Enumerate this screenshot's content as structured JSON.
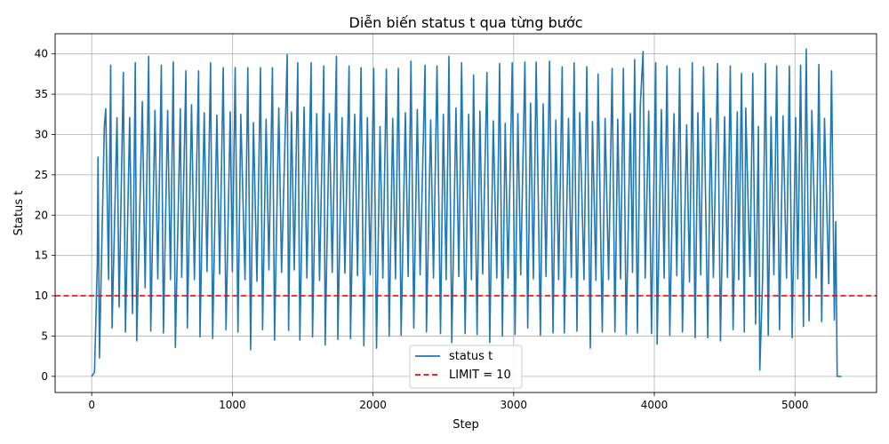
{
  "chart_data": {
    "type": "line",
    "title": "Diễn biến status t qua từng bước",
    "xlabel": "Step",
    "ylabel": "Status t",
    "xlim": [
      -260,
      5580
    ],
    "ylim": [
      -2,
      42.5
    ],
    "xticks": [
      0,
      1000,
      2000,
      3000,
      4000,
      5000
    ],
    "yticks": [
      0,
      5,
      10,
      15,
      20,
      25,
      30,
      35,
      40
    ],
    "grid": true,
    "legend_position": "bottom-center",
    "series": [
      {
        "name": "status t",
        "color": "#1f77b4",
        "style": "solid",
        "description_of_shape": "rapid oscillation between ~3-12 (troughs) and ~30-40 (peaks), roughly 110 cycles",
        "start": [
          [
            0,
            0
          ],
          [
            20,
            0.5
          ],
          [
            40,
            14
          ],
          [
            45,
            27.2
          ],
          [
            55,
            2.3
          ]
        ],
        "peaks": [
          [
            45,
            27.2
          ],
          [
            90,
            31.1
          ],
          [
            100,
            33.2
          ],
          [
            135,
            38.6
          ],
          [
            180,
            32.1
          ],
          [
            225,
            37.7
          ],
          [
            270,
            32.1
          ],
          [
            310,
            38.9
          ],
          [
            360,
            34.1
          ],
          [
            405,
            39.7
          ],
          [
            450,
            33.0
          ],
          [
            495,
            38.6
          ],
          [
            540,
            33.0
          ],
          [
            580,
            39.0
          ],
          [
            630,
            33.2
          ],
          [
            670,
            37.9
          ],
          [
            710,
            33.7
          ],
          [
            760,
            37.9
          ],
          [
            800,
            32.7
          ],
          [
            845,
            38.9
          ],
          [
            890,
            32.4
          ],
          [
            935,
            38.3
          ],
          [
            985,
            32.8
          ],
          [
            1020,
            38.3
          ],
          [
            1060,
            32.5
          ],
          [
            1110,
            38.3
          ],
          [
            1150,
            31.5
          ],
          [
            1200,
            38.3
          ],
          [
            1240,
            31.9
          ],
          [
            1285,
            38.3
          ],
          [
            1330,
            33.3
          ],
          [
            1390,
            39.9
          ],
          [
            1420,
            32.8
          ],
          [
            1465,
            38.9
          ],
          [
            1510,
            33.4
          ],
          [
            1560,
            38.9
          ],
          [
            1600,
            32.6
          ],
          [
            1650,
            38.5
          ],
          [
            1690,
            32.6
          ],
          [
            1740,
            39.7
          ],
          [
            1780,
            32.1
          ],
          [
            1830,
            38.5
          ],
          [
            1870,
            32.5
          ],
          [
            1915,
            38.3
          ],
          [
            1960,
            32.1
          ],
          [
            2005,
            38.2
          ],
          [
            2050,
            31.0
          ],
          [
            2095,
            38.1
          ],
          [
            2140,
            32.0
          ],
          [
            2180,
            38.2
          ],
          [
            2230,
            32.7
          ],
          [
            2270,
            39.1
          ],
          [
            2315,
            33.1
          ],
          [
            2370,
            38.6
          ],
          [
            2410,
            31.8
          ],
          [
            2455,
            38.5
          ],
          [
            2500,
            32.5
          ],
          [
            2540,
            39.7
          ],
          [
            2590,
            33.3
          ],
          [
            2630,
            38.9
          ],
          [
            2680,
            32.5
          ],
          [
            2715,
            37.4
          ],
          [
            2760,
            32.9
          ],
          [
            2810,
            37.7
          ],
          [
            2855,
            31.7
          ],
          [
            2900,
            38.8
          ],
          [
            2940,
            31.4
          ],
          [
            2990,
            38.9
          ],
          [
            3030,
            32.6
          ],
          [
            3080,
            39.0
          ],
          [
            3120,
            33.9
          ],
          [
            3160,
            39.0
          ],
          [
            3210,
            33.8
          ],
          [
            3255,
            39.1
          ],
          [
            3300,
            31.8
          ],
          [
            3345,
            38.4
          ],
          [
            3390,
            32.0
          ],
          [
            3430,
            38.9
          ],
          [
            3470,
            32.7
          ],
          [
            3520,
            38.4
          ],
          [
            3560,
            31.6
          ],
          [
            3600,
            37.5
          ],
          [
            3650,
            32.0
          ],
          [
            3700,
            38.2
          ],
          [
            3740,
            31.9
          ],
          [
            3780,
            38.2
          ],
          [
            3830,
            32.6
          ],
          [
            3860,
            39.3
          ],
          [
            3900,
            33.5
          ],
          [
            3920,
            40.3
          ],
          [
            3960,
            32.9
          ],
          [
            4010,
            38.9
          ],
          [
            4050,
            33.1
          ],
          [
            4090,
            38.5
          ],
          [
            4140,
            32.6
          ],
          [
            4180,
            38.2
          ],
          [
            4230,
            31.2
          ],
          [
            4270,
            38.9
          ],
          [
            4310,
            32.7
          ],
          [
            4350,
            38.4
          ],
          [
            4400,
            32.0
          ],
          [
            4450,
            38.8
          ],
          [
            4500,
            32.2
          ],
          [
            4540,
            38.5
          ],
          [
            4590,
            32.8
          ],
          [
            4620,
            37.6
          ],
          [
            4650,
            33.3
          ],
          [
            4700,
            37.6
          ],
          [
            4740,
            31.0
          ],
          [
            4790,
            38.8
          ],
          [
            4830,
            32.2
          ],
          [
            4870,
            38.5
          ],
          [
            4915,
            32.3
          ],
          [
            4960,
            38.5
          ],
          [
            5005,
            32.1
          ],
          [
            5040,
            38.6
          ],
          [
            5080,
            40.6
          ],
          [
            5120,
            33.0
          ],
          [
            5170,
            38.7
          ],
          [
            5210,
            32.0
          ],
          [
            5260,
            37.9
          ]
        ],
        "troughs": [
          [
            55,
            2.3
          ],
          [
            120,
            12.0
          ],
          [
            145,
            6.0
          ],
          [
            195,
            8.6
          ],
          [
            240,
            5.5
          ],
          [
            290,
            7.8
          ],
          [
            320,
            4.4
          ],
          [
            380,
            11.0
          ],
          [
            420,
            5.6
          ],
          [
            470,
            12.1
          ],
          [
            510,
            5.4
          ],
          [
            560,
            12.0
          ],
          [
            595,
            3.6
          ],
          [
            640,
            12.3
          ],
          [
            680,
            6.0
          ],
          [
            730,
            12.0
          ],
          [
            770,
            4.9
          ],
          [
            820,
            13.0
          ],
          [
            860,
            4.7
          ],
          [
            910,
            12.7
          ],
          [
            955,
            5.8
          ],
          [
            1000,
            13.0
          ],
          [
            1040,
            5.5
          ],
          [
            1090,
            12.0
          ],
          [
            1130,
            3.3
          ],
          [
            1175,
            11.8
          ],
          [
            1215,
            5.8
          ],
          [
            1260,
            13.2
          ],
          [
            1300,
            4.5
          ],
          [
            1350,
            12.9
          ],
          [
            1400,
            5.7
          ],
          [
            1440,
            13.2
          ],
          [
            1480,
            4.5
          ],
          [
            1530,
            12.2
          ],
          [
            1570,
            4.9
          ],
          [
            1620,
            11.9
          ],
          [
            1660,
            3.9
          ],
          [
            1710,
            12.9
          ],
          [
            1750,
            4.6
          ],
          [
            1800,
            12.8
          ],
          [
            1840,
            4.7
          ],
          [
            1890,
            12.5
          ],
          [
            1935,
            3.8
          ],
          [
            1980,
            12.6
          ],
          [
            2025,
            3.5
          ],
          [
            2070,
            12.2
          ],
          [
            2115,
            5.0
          ],
          [
            2160,
            12.1
          ],
          [
            2200,
            5.1
          ],
          [
            2250,
            12.4
          ],
          [
            2290,
            6.0
          ],
          [
            2335,
            12.6
          ],
          [
            2380,
            5.5
          ],
          [
            2430,
            12.2
          ],
          [
            2480,
            5.3
          ],
          [
            2520,
            12.0
          ],
          [
            2560,
            4.2
          ],
          [
            2610,
            12.4
          ],
          [
            2655,
            5.3
          ],
          [
            2700,
            12.0
          ],
          [
            2740,
            5.2
          ],
          [
            2780,
            12.7
          ],
          [
            2830,
            4.2
          ],
          [
            2880,
            12.2
          ],
          [
            2920,
            5.0
          ],
          [
            2960,
            12.2
          ],
          [
            3010,
            5.2
          ],
          [
            3050,
            12.6
          ],
          [
            3100,
            6.0
          ],
          [
            3140,
            12.1
          ],
          [
            3190,
            5.1
          ],
          [
            3230,
            12.4
          ],
          [
            3280,
            5.4
          ],
          [
            3320,
            12.0
          ],
          [
            3360,
            5.4
          ],
          [
            3410,
            12.3
          ],
          [
            3450,
            5.6
          ],
          [
            3500,
            12.0
          ],
          [
            3545,
            3.5
          ],
          [
            3585,
            11.9
          ],
          [
            3630,
            5.5
          ],
          [
            3675,
            12.0
          ],
          [
            3720,
            5.5
          ],
          [
            3760,
            12.1
          ],
          [
            3800,
            5.2
          ],
          [
            3845,
            12.9
          ],
          [
            3880,
            5.4
          ],
          [
            3935,
            12.2
          ],
          [
            3980,
            5.3
          ],
          [
            4020,
            4.0
          ],
          [
            4070,
            12.2
          ],
          [
            4110,
            5.1
          ],
          [
            4160,
            12.5
          ],
          [
            4200,
            5.5
          ],
          [
            4250,
            11.7
          ],
          [
            4290,
            4.8
          ],
          [
            4330,
            12.6
          ],
          [
            4380,
            4.8
          ],
          [
            4420,
            12.3
          ],
          [
            4470,
            4.4
          ],
          [
            4520,
            12.3
          ],
          [
            4560,
            5.8
          ],
          [
            4600,
            12.0
          ],
          [
            4640,
            5.5
          ],
          [
            4680,
            12.4
          ],
          [
            4720,
            6.5
          ],
          [
            4750,
            0.8
          ],
          [
            4770,
            12.1
          ],
          [
            4810,
            5.1
          ],
          [
            4850,
            12.6
          ],
          [
            4890,
            5.8
          ],
          [
            4940,
            12.2
          ],
          [
            4980,
            4.8
          ],
          [
            5020,
            12.1
          ],
          [
            5060,
            6.2
          ],
          [
            5100,
            6.9
          ],
          [
            5150,
            12.2
          ],
          [
            5190,
            6.8
          ],
          [
            5240,
            11.5
          ],
          [
            5280,
            7.0
          ]
        ],
        "end": [
          [
            5280,
            7.0
          ],
          [
            5290,
            19.2
          ],
          [
            5300,
            0
          ],
          [
            5330,
            0
          ]
        ]
      },
      {
        "name": "LIMIT = 10",
        "color": "#ff0000",
        "style": "dashed",
        "y": 10
      }
    ]
  }
}
